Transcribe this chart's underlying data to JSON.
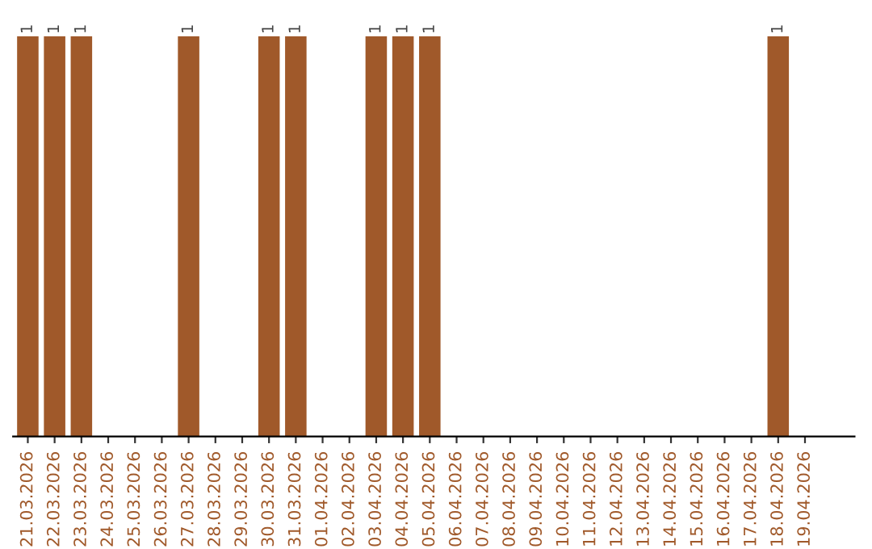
{
  "chart_data": {
    "type": "bar",
    "categories": [
      "21.03.2026",
      "22.03.2026",
      "23.03.2026",
      "24.03.2026",
      "25.03.2026",
      "26.03.2026",
      "27.03.2026",
      "28.03.2026",
      "29.03.2026",
      "30.03.2026",
      "31.03.2026",
      "01.04.2026",
      "02.04.2026",
      "03.04.2026",
      "04.04.2026",
      "05.04.2026",
      "06.04.2026",
      "07.04.2026",
      "08.04.2026",
      "09.04.2026",
      "10.04.2026",
      "11.04.2026",
      "12.04.2026",
      "13.04.2026",
      "14.04.2026",
      "15.04.2026",
      "16.04.2026",
      "17.04.2026",
      "18.04.2026",
      "19.04.2026"
    ],
    "values": [
      1,
      1,
      1,
      0,
      0,
      0,
      1,
      0,
      0,
      1,
      1,
      0,
      0,
      1,
      1,
      1,
      0,
      0,
      0,
      0,
      0,
      0,
      0,
      0,
      0,
      0,
      0,
      0,
      1,
      0
    ],
    "value_labels": [
      "1",
      "1",
      "1",
      null,
      null,
      null,
      "1",
      null,
      null,
      "1",
      "1",
      null,
      null,
      "1",
      "1",
      "1",
      null,
      null,
      null,
      null,
      null,
      null,
      null,
      null,
      null,
      null,
      null,
      null,
      "1",
      null
    ],
    "color": "#a0592a",
    "tick_labels": "x",
    "grid": false,
    "legend": false
  }
}
